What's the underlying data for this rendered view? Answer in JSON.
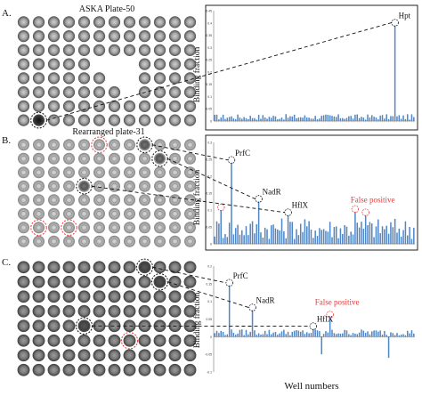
{
  "figure": {
    "panel_letters": [
      "A.",
      "B.",
      "C."
    ],
    "plate_titles": [
      "ASKA Plate-50",
      "Rearranged plate-31"
    ],
    "x_label": "Well numbers",
    "colors": {
      "bar": "#4f86c6",
      "spot_dark": "#2b2b2b",
      "highlight": "#e23b3b",
      "annotation": "#111111",
      "false_positive": "#e23b3b"
    }
  },
  "plates": [
    {
      "cols": 12,
      "rows": 8,
      "missing_spots": [
        [
          5,
          3
        ],
        [
          6,
          3
        ],
        [
          7,
          3
        ],
        [
          6,
          4
        ],
        [
          7,
          4
        ],
        [
          7,
          5
        ]
      ],
      "black_circle_spots": [
        [
          1,
          7
        ]
      ],
      "red_circle_spots": []
    },
    {
      "cols": 12,
      "rows": 8,
      "missing_spots": [],
      "black_circle_spots": [
        [
          8,
          0
        ],
        [
          9,
          1
        ],
        [
          4,
          3
        ]
      ],
      "red_circle_spots": [
        [
          5,
          0
        ],
        [
          1,
          6
        ],
        [
          3,
          6
        ]
      ]
    },
    {
      "cols": 12,
      "rows": 8,
      "missing_spots": [],
      "black_circle_spots": [
        [
          8,
          0
        ],
        [
          9,
          1
        ],
        [
          4,
          4
        ]
      ],
      "red_circle_spots": [
        [
          7,
          5
        ]
      ]
    }
  ],
  "chart_data": [
    {
      "type": "bar",
      "ylabel": "Binding fraction",
      "ylim": [
        0,
        0.45
      ],
      "y_ticks": [
        "0",
        "0.05",
        "0.1",
        "0.15",
        "0.2",
        "0.25",
        "0.3",
        "0.35",
        "0.4",
        "0.45"
      ],
      "n_wells": 96,
      "baseline_level": 0.02,
      "labeled_bars": [
        {
          "index": 86,
          "value": 0.39,
          "label": "Hpt"
        }
      ]
    },
    {
      "type": "bar",
      "ylabel": "Binding fraction",
      "ylim": [
        0,
        0.3
      ],
      "y_ticks": [
        "0",
        "0.05",
        "0.1",
        "0.15",
        "0.2",
        "0.25",
        "0.3"
      ],
      "n_wells": 96,
      "baseline_level": 0.055,
      "labeled_bars": [
        {
          "index": 8,
          "value": 0.24,
          "label": "PrfC"
        },
        {
          "index": 21,
          "value": 0.125,
          "label": "NadR"
        },
        {
          "index": 35,
          "value": 0.085,
          "label": "HflX"
        }
      ],
      "false_positive_bars": [
        {
          "index": 3,
          "value": 0.1
        },
        {
          "index": 67,
          "value": 0.095
        },
        {
          "index": 72,
          "value": 0.085
        }
      ],
      "false_positive_label": "False positive"
    },
    {
      "type": "bar",
      "ylabel": "Binding fraction",
      "ylim": [
        -0.1,
        0.2
      ],
      "y_ticks": [
        "-0.1",
        "-0.05",
        "0",
        "0.05",
        "0.1",
        "0.15",
        "0.2"
      ],
      "n_wells": 96,
      "baseline_level": 0.015,
      "labeled_bars": [
        {
          "index": 7,
          "value": 0.145,
          "label": "PrfC"
        },
        {
          "index": 18,
          "value": 0.075,
          "label": "NadR"
        },
        {
          "index": 47,
          "value": 0.022,
          "label": "HflX"
        }
      ],
      "false_positive_bars": [
        {
          "index": 55,
          "value": 0.055
        }
      ],
      "false_positive_label": "False positive",
      "negative_bars": [
        {
          "index": 51,
          "value": -0.05
        },
        {
          "index": 83,
          "value": -0.06
        }
      ]
    }
  ]
}
